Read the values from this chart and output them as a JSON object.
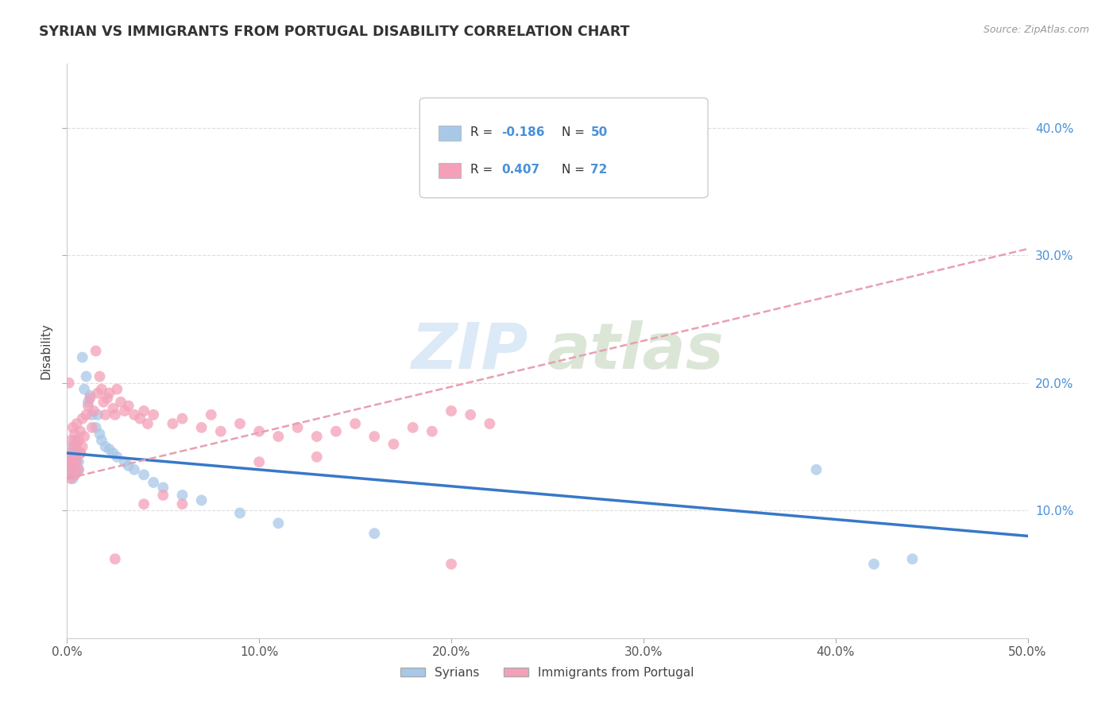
{
  "title": "SYRIAN VS IMMIGRANTS FROM PORTUGAL DISABILITY CORRELATION CHART",
  "source": "Source: ZipAtlas.com",
  "ylabel": "Disability",
  "watermark_zip": "ZIP",
  "watermark_atlas": "atlas",
  "legend_labels": [
    "Syrians",
    "Immigrants from Portugal"
  ],
  "R_syrians": -0.186,
  "N_syrians": 50,
  "R_portugal": 0.407,
  "N_portugal": 72,
  "syrians_color": "#a8c8e8",
  "portugal_color": "#f4a0b8",
  "trend_syrian_color": "#3878c8",
  "trend_portugal_color": "#e87898",
  "trend_portugal_dash_color": "#e8a0b0",
  "xlim": [
    0.0,
    0.5
  ],
  "ylim": [
    0.0,
    0.45
  ],
  "xticks": [
    0.0,
    0.1,
    0.2,
    0.3,
    0.4,
    0.5
  ],
  "yticks_right": [
    0.1,
    0.2,
    0.3,
    0.4
  ],
  "background_color": "#ffffff",
  "grid_color": "#dddddd",
  "syrians_x": [
    0.001,
    0.001,
    0.001,
    0.002,
    0.002,
    0.002,
    0.002,
    0.003,
    0.003,
    0.003,
    0.003,
    0.003,
    0.004,
    0.004,
    0.004,
    0.004,
    0.005,
    0.005,
    0.005,
    0.006,
    0.006,
    0.007,
    0.008,
    0.009,
    0.01,
    0.011,
    0.012,
    0.013,
    0.015,
    0.016,
    0.017,
    0.018,
    0.02,
    0.022,
    0.024,
    0.026,
    0.03,
    0.032,
    0.035,
    0.04,
    0.045,
    0.05,
    0.06,
    0.07,
    0.09,
    0.11,
    0.16,
    0.39,
    0.42,
    0.44
  ],
  "syrians_y": [
    0.13,
    0.135,
    0.14,
    0.128,
    0.133,
    0.138,
    0.142,
    0.125,
    0.132,
    0.136,
    0.145,
    0.15,
    0.128,
    0.135,
    0.14,
    0.155,
    0.13,
    0.14,
    0.148,
    0.132,
    0.138,
    0.145,
    0.22,
    0.195,
    0.205,
    0.185,
    0.19,
    0.175,
    0.165,
    0.175,
    0.16,
    0.155,
    0.15,
    0.148,
    0.145,
    0.142,
    0.138,
    0.135,
    0.132,
    0.128,
    0.122,
    0.118,
    0.112,
    0.108,
    0.098,
    0.09,
    0.082,
    0.132,
    0.058,
    0.062
  ],
  "portugal_x": [
    0.001,
    0.001,
    0.001,
    0.002,
    0.002,
    0.002,
    0.003,
    0.003,
    0.003,
    0.004,
    0.004,
    0.004,
    0.005,
    0.005,
    0.005,
    0.006,
    0.006,
    0.007,
    0.007,
    0.008,
    0.008,
    0.009,
    0.01,
    0.011,
    0.012,
    0.013,
    0.014,
    0.015,
    0.016,
    0.017,
    0.018,
    0.019,
    0.02,
    0.021,
    0.022,
    0.024,
    0.025,
    0.026,
    0.028,
    0.03,
    0.032,
    0.035,
    0.038,
    0.04,
    0.042,
    0.045,
    0.05,
    0.055,
    0.06,
    0.07,
    0.075,
    0.08,
    0.09,
    0.1,
    0.11,
    0.12,
    0.13,
    0.14,
    0.15,
    0.16,
    0.17,
    0.18,
    0.19,
    0.2,
    0.21,
    0.22,
    0.04,
    0.06,
    0.1,
    0.13,
    0.025,
    0.2
  ],
  "portugal_y": [
    0.13,
    0.14,
    0.2,
    0.125,
    0.138,
    0.155,
    0.135,
    0.148,
    0.165,
    0.128,
    0.142,
    0.16,
    0.138,
    0.152,
    0.168,
    0.132,
    0.155,
    0.145,
    0.162,
    0.15,
    0.172,
    0.158,
    0.175,
    0.182,
    0.188,
    0.165,
    0.178,
    0.225,
    0.192,
    0.205,
    0.195,
    0.185,
    0.175,
    0.188,
    0.192,
    0.18,
    0.175,
    0.195,
    0.185,
    0.178,
    0.182,
    0.175,
    0.172,
    0.178,
    0.168,
    0.175,
    0.112,
    0.168,
    0.172,
    0.165,
    0.175,
    0.162,
    0.168,
    0.162,
    0.158,
    0.165,
    0.158,
    0.162,
    0.168,
    0.158,
    0.152,
    0.165,
    0.162,
    0.178,
    0.175,
    0.168,
    0.105,
    0.105,
    0.138,
    0.142,
    0.062,
    0.058
  ]
}
